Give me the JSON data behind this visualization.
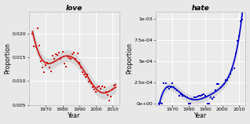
{
  "love": {
    "title": "love",
    "scatter_x": [
      1962,
      1963,
      1964,
      1965,
      1966,
      1967,
      1968,
      1969,
      1970,
      1971,
      1972,
      1973,
      1974,
      1975,
      1976,
      1977,
      1978,
      1979,
      1980,
      1981,
      1982,
      1983,
      1984,
      1985,
      1986,
      1987,
      1988,
      1989,
      1990,
      1991,
      1992,
      1993,
      1994,
      1995,
      1996,
      1997,
      1998,
      1999,
      2000,
      2001,
      2002,
      2003,
      2004,
      2005,
      2006,
      2007,
      2008,
      2009,
      2010,
      2011,
      2012
    ],
    "scatter_y": [
      0.02,
      0.0173,
      0.0172,
      0.0211,
      0.0175,
      0.0142,
      0.0128,
      0.0118,
      0.0133,
      0.0138,
      0.0128,
      0.012,
      0.0153,
      0.0146,
      0.0157,
      0.0155,
      0.016,
      0.0146,
      0.0162,
      0.0136,
      0.013,
      0.0152,
      0.0148,
      0.0146,
      0.0157,
      0.016,
      0.0146,
      0.0158,
      0.0138,
      0.0128,
      0.0118,
      0.0113,
      0.0108,
      0.0113,
      0.0098,
      0.0096,
      0.0088,
      0.0082,
      0.0077,
      0.0087,
      0.0089,
      0.0084,
      0.0089,
      0.0087,
      0.0078,
      0.007,
      0.006,
      0.0067,
      0.0083,
      0.0091,
      0.0093
    ],
    "color": "#d01010",
    "ylabel": "Proportion",
    "xlabel": "Year",
    "ylim": [
      0.005,
      0.0245
    ],
    "yticks": [
      0.005,
      0.01,
      0.015,
      0.02
    ],
    "ytick_labels": [
      "0.005",
      "0.010",
      "0.015",
      "0.020"
    ],
    "xticks": [
      1970,
      1980,
      1990,
      2000,
      2010
    ]
  },
  "hate": {
    "title": "hate",
    "scatter_x": [
      1962,
      1963,
      1964,
      1965,
      1966,
      1967,
      1968,
      1969,
      1970,
      1971,
      1972,
      1973,
      1974,
      1975,
      1976,
      1977,
      1978,
      1979,
      1980,
      1981,
      1982,
      1983,
      1984,
      1985,
      1986,
      1987,
      1988,
      1989,
      1990,
      1991,
      1992,
      1993,
      1994,
      1995,
      1996,
      1997,
      1998,
      1999,
      2000,
      2001,
      2002,
      2003,
      2004,
      2005,
      2006,
      2007,
      2008,
      2009,
      2010,
      2011,
      2012
    ],
    "scatter_y": [
      0.0,
      1e-05,
      0.0,
      0.000245,
      0.000238,
      0.000195,
      0.000175,
      0.000195,
      0.000238,
      0.000195,
      0.000175,
      0.000155,
      9.5e-05,
      0.000115,
      9.5e-05,
      9.5e-05,
      8.5e-05,
      7.5e-05,
      0.0,
      0.0,
      5.5e-05,
      7.5e-05,
      7.5e-05,
      8.5e-05,
      9.5e-05,
      9.5e-05,
      0.000105,
      0.000115,
      9.5e-05,
      0.0,
      0.0,
      7.5e-05,
      5.5e-05,
      7.5e-05,
      0.000155,
      0.000235,
      0.000235,
      0.000195,
      0.000215,
      0.000235,
      0.000275,
      0.000275,
      0.000315,
      0.000355,
      0.000395,
      0.000415,
      0.000595,
      0.000745,
      0.000795,
      0.000975,
      0.000995
    ],
    "color": "#0000cc",
    "ylabel": "Proportion",
    "xlabel": "Year",
    "ylim": [
      -1.5e-05,
      0.00108
    ],
    "yticks": [
      0.0,
      0.00025,
      0.0005,
      0.00075,
      0.001
    ],
    "ytick_labels": [
      "0e+00",
      "2.5e-04",
      "5e-04",
      "7.5e-04",
      "1e-03"
    ],
    "xticks": [
      1970,
      1980,
      1990,
      2000,
      2010
    ]
  },
  "bg_color": "#e8e8e8",
  "panel_bg": "#ebebeb",
  "grid_color": "#ffffff",
  "ci_alpha": 0.5,
  "ci_color": "#c0c0c0"
}
